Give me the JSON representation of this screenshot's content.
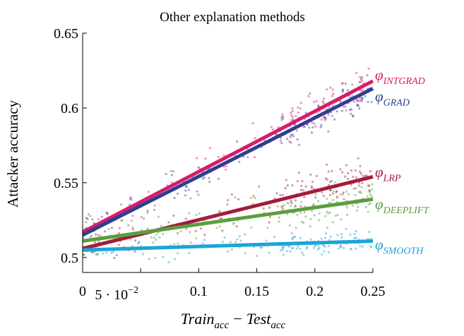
{
  "chart_data": {
    "type": "scatter",
    "title": "Other explanation methods",
    "xlabel": "Train_acc − Test_acc",
    "xlabel_main": "Train",
    "xlabel_sub": "acc",
    "xlabel_minus": "−",
    "xlabel_main2": "Test",
    "xlabel_sub2": "acc",
    "ylabel": "Attacker accuracy",
    "xlim": [
      0,
      0.25
    ],
    "ylim": [
      0.49,
      0.65
    ],
    "grid": false,
    "legend": "inline labels at right end of each fit line",
    "x_ticks": [
      {
        "value": 0,
        "label": "0"
      },
      {
        "value": 0.05,
        "label": "5 · 10",
        "exp": "−2"
      },
      {
        "value": 0.1,
        "label": "0.1"
      },
      {
        "value": 0.15,
        "label": "0.15"
      },
      {
        "value": 0.2,
        "label": "0.2"
      },
      {
        "value": 0.25,
        "label": "0.25"
      }
    ],
    "y_ticks": [
      {
        "value": 0.5,
        "label": "0.5"
      },
      {
        "value": 0.55,
        "label": "0.55"
      },
      {
        "value": 0.6,
        "label": "0.6"
      },
      {
        "value": 0.65,
        "label": "0.65"
      }
    ],
    "series": [
      {
        "name": "INTGRAD",
        "label_phi": "φ",
        "color": "#d81b6a",
        "fit": {
          "x": [
            0,
            0.25
          ],
          "y": [
            0.517,
            0.618
          ]
        },
        "noise": 0.012
      },
      {
        "name": "GRAD",
        "label_phi": "φ",
        "color": "#2e3f8f",
        "fit": {
          "x": [
            0,
            0.25
          ],
          "y": [
            0.515,
            0.613
          ]
        },
        "noise": 0.012
      },
      {
        "name": "LRP",
        "label_phi": "φ",
        "color": "#a31c3a",
        "fit": {
          "x": [
            0,
            0.25
          ],
          "y": [
            0.506,
            0.554
          ]
        },
        "noise": 0.014
      },
      {
        "name": "DEEPLIFT",
        "label_phi": "φ",
        "color": "#5b9e3c",
        "fit": {
          "x": [
            0,
            0.25
          ],
          "y": [
            0.511,
            0.539
          ]
        },
        "noise": 0.013
      },
      {
        "name": "SMOOTH",
        "label_phi": "φ",
        "color": "#1ea3d9",
        "fit": {
          "x": [
            0,
            0.25
          ],
          "y": [
            0.505,
            0.511
          ]
        },
        "noise": 0.008
      }
    ]
  }
}
